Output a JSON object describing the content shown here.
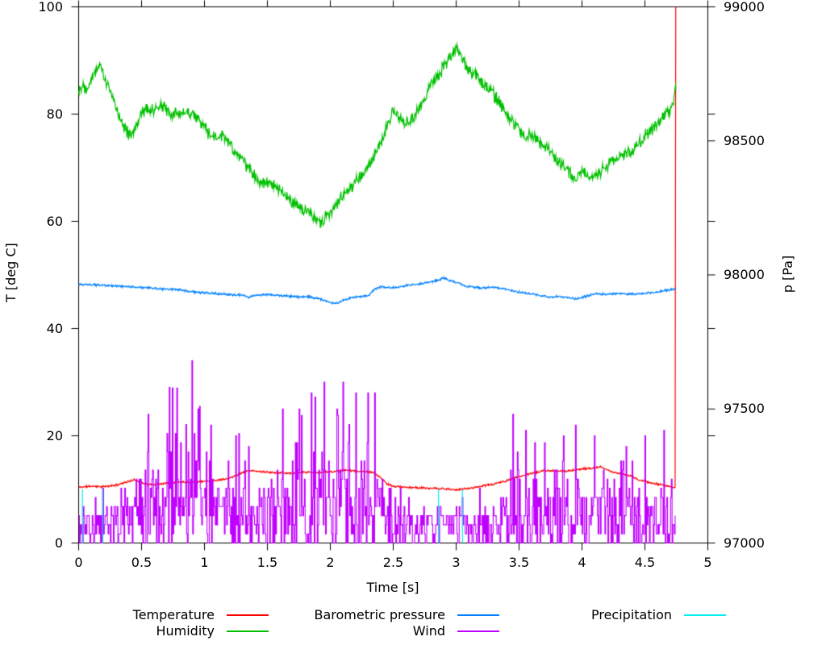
{
  "chart_data": {
    "type": "line",
    "title": "",
    "xlabel": "Time [s]",
    "ylabel": "T [deg C]",
    "y2label": "p [Pa]",
    "xlim": [
      0,
      5
    ],
    "ylim": [
      0,
      100
    ],
    "y2lim": [
      97000,
      99000
    ],
    "grid": false,
    "tick_style": "outward, mirrored on top and right borders",
    "x_tick_values": [
      0,
      0.5,
      1,
      1.5,
      2,
      2.5,
      3,
      3.5,
      4,
      4.5,
      5
    ],
    "x_tick_labels": [
      "0",
      "0.5",
      "1",
      "1.5",
      "2",
      "2.5",
      "3",
      "3.5",
      "4",
      "4.5",
      "5"
    ],
    "y_tick_values": [
      0,
      20,
      40,
      60,
      80,
      100
    ],
    "y_tick_labels": [
      "0",
      "20",
      "40",
      "60",
      "80",
      "100"
    ],
    "y2_tick_values": [
      97000,
      97500,
      98000,
      98500,
      99000
    ],
    "y2_tick_labels": [
      "97000",
      "97500",
      "98000",
      "98500",
      "99000"
    ],
    "data_end_time": 4.745,
    "series": [
      {
        "name": "Temperature",
        "color": "#ff0000",
        "axis": "y1",
        "style": "line",
        "noise": 0.22,
        "seed": 11,
        "points": [
          [
            0,
            10.4
          ],
          [
            0.1,
            10.6
          ],
          [
            0.2,
            10.5
          ],
          [
            0.3,
            10.8
          ],
          [
            0.35,
            11.2
          ],
          [
            0.4,
            11.5
          ],
          [
            0.45,
            11.8
          ],
          [
            0.5,
            11.3
          ],
          [
            0.55,
            10.9
          ],
          [
            0.6,
            10.9
          ],
          [
            0.7,
            11.2
          ],
          [
            0.8,
            11.4
          ],
          [
            0.9,
            11.3
          ],
          [
            1.0,
            11.5
          ],
          [
            1.1,
            11.7
          ],
          [
            1.2,
            12.1
          ],
          [
            1.25,
            12.6
          ],
          [
            1.3,
            13.1
          ],
          [
            1.35,
            13.5
          ],
          [
            1.4,
            13.4
          ],
          [
            1.5,
            13.2
          ],
          [
            1.6,
            13.1
          ],
          [
            1.7,
            13.0
          ],
          [
            1.8,
            13.2
          ],
          [
            1.9,
            13.1
          ],
          [
            2.0,
            13.3
          ],
          [
            2.1,
            13.5
          ],
          [
            2.15,
            13.6
          ],
          [
            2.2,
            13.4
          ],
          [
            2.3,
            13.3
          ],
          [
            2.35,
            13.0
          ],
          [
            2.4,
            12.2
          ],
          [
            2.45,
            11.0
          ],
          [
            2.5,
            10.6
          ],
          [
            2.6,
            10.4
          ],
          [
            2.7,
            10.3
          ],
          [
            2.8,
            10.2
          ],
          [
            2.9,
            10.1
          ],
          [
            3.0,
            9.9
          ],
          [
            3.1,
            10.2
          ],
          [
            3.2,
            10.6
          ],
          [
            3.3,
            11.0
          ],
          [
            3.4,
            11.6
          ],
          [
            3.5,
            12.4
          ],
          [
            3.6,
            13.0
          ],
          [
            3.7,
            13.5
          ],
          [
            3.8,
            13.4
          ],
          [
            3.9,
            13.5
          ],
          [
            4.0,
            13.8
          ],
          [
            4.1,
            14.0
          ],
          [
            4.15,
            14.2
          ],
          [
            4.2,
            13.6
          ],
          [
            4.25,
            13.2
          ],
          [
            4.3,
            13.0
          ],
          [
            4.35,
            12.7
          ],
          [
            4.4,
            12.4
          ],
          [
            4.45,
            11.8
          ],
          [
            4.5,
            11.5
          ],
          [
            4.55,
            11.2
          ],
          [
            4.6,
            11.0
          ],
          [
            4.65,
            10.8
          ],
          [
            4.7,
            10.5
          ],
          [
            4.73,
            10.3
          ],
          [
            4.74,
            10.2
          ],
          [
            4.745,
            100
          ]
        ]
      },
      {
        "name": "Humidity",
        "color": "#00c000",
        "axis": "y1",
        "style": "line",
        "noise": 1.4,
        "seed": 22,
        "points": [
          [
            0,
            84.5
          ],
          [
            0.03,
            85.5
          ],
          [
            0.06,
            85
          ],
          [
            0.1,
            86.5
          ],
          [
            0.13,
            88
          ],
          [
            0.17,
            89.5
          ],
          [
            0.2,
            87
          ],
          [
            0.23,
            85.5
          ],
          [
            0.27,
            83
          ],
          [
            0.3,
            81
          ],
          [
            0.33,
            79.5
          ],
          [
            0.38,
            77
          ],
          [
            0.42,
            75.5
          ],
          [
            0.46,
            78
          ],
          [
            0.5,
            80.5
          ],
          [
            0.55,
            81
          ],
          [
            0.6,
            80.5
          ],
          [
            0.65,
            81.5
          ],
          [
            0.7,
            81
          ],
          [
            0.75,
            79.5
          ],
          [
            0.8,
            80.5
          ],
          [
            0.85,
            80
          ],
          [
            0.9,
            80.5
          ],
          [
            0.95,
            79
          ],
          [
            1.0,
            77.5
          ],
          [
            1.05,
            76
          ],
          [
            1.1,
            75.5
          ],
          [
            1.15,
            76
          ],
          [
            1.2,
            74.5
          ],
          [
            1.25,
            72.5
          ],
          [
            1.3,
            71.5
          ],
          [
            1.35,
            70
          ],
          [
            1.4,
            68.5
          ],
          [
            1.45,
            67.5
          ],
          [
            1.5,
            67
          ],
          [
            1.55,
            66.5
          ],
          [
            1.6,
            65.5
          ],
          [
            1.65,
            64.5
          ],
          [
            1.7,
            63.5
          ],
          [
            1.75,
            63
          ],
          [
            1.8,
            62
          ],
          [
            1.85,
            61
          ],
          [
            1.9,
            60
          ],
          [
            1.93,
            59.5
          ],
          [
            1.97,
            61
          ],
          [
            2.0,
            62
          ],
          [
            2.05,
            63.5
          ],
          [
            2.1,
            65
          ],
          [
            2.15,
            66
          ],
          [
            2.2,
            67.5
          ],
          [
            2.25,
            68.5
          ],
          [
            2.3,
            70
          ],
          [
            2.35,
            72
          ],
          [
            2.4,
            74.5
          ],
          [
            2.45,
            78
          ],
          [
            2.5,
            80.5
          ],
          [
            2.55,
            79.5
          ],
          [
            2.6,
            78
          ],
          [
            2.65,
            79
          ],
          [
            2.7,
            81
          ],
          [
            2.75,
            83
          ],
          [
            2.8,
            85.5
          ],
          [
            2.85,
            87
          ],
          [
            2.9,
            89
          ],
          [
            2.95,
            90.5
          ],
          [
            3.0,
            92.5
          ],
          [
            3.05,
            90
          ],
          [
            3.1,
            88
          ],
          [
            3.15,
            87.5
          ],
          [
            3.2,
            86
          ],
          [
            3.25,
            85
          ],
          [
            3.3,
            83.5
          ],
          [
            3.35,
            82
          ],
          [
            3.4,
            80
          ],
          [
            3.45,
            78.5
          ],
          [
            3.5,
            77
          ],
          [
            3.55,
            75.5
          ],
          [
            3.6,
            76
          ],
          [
            3.65,
            75
          ],
          [
            3.7,
            74
          ],
          [
            3.75,
            73
          ],
          [
            3.8,
            71.5
          ],
          [
            3.85,
            70.5
          ],
          [
            3.9,
            69
          ],
          [
            3.95,
            68
          ],
          [
            4.0,
            69.5
          ],
          [
            4.05,
            68.5
          ],
          [
            4.1,
            68
          ],
          [
            4.15,
            69.5
          ],
          [
            4.2,
            70.5
          ],
          [
            4.25,
            71.5
          ],
          [
            4.3,
            72
          ],
          [
            4.35,
            72.5
          ],
          [
            4.4,
            73.5
          ],
          [
            4.45,
            74.5
          ],
          [
            4.5,
            76
          ],
          [
            4.55,
            77
          ],
          [
            4.6,
            78
          ],
          [
            4.65,
            79.5
          ],
          [
            4.7,
            80.5
          ],
          [
            4.72,
            82
          ],
          [
            4.745,
            84.5
          ]
        ]
      },
      {
        "name": "Barometric pressure",
        "color": "#0080ff",
        "axis": "y2",
        "style": "line",
        "noise": 5,
        "seed": 33,
        "points": [
          [
            0,
            97964
          ],
          [
            0.1,
            97963
          ],
          [
            0.2,
            97961
          ],
          [
            0.3,
            97959
          ],
          [
            0.4,
            97956
          ],
          [
            0.5,
            97953
          ],
          [
            0.6,
            97950
          ],
          [
            0.7,
            97947
          ],
          [
            0.8,
            97944
          ],
          [
            0.9,
            97937
          ],
          [
            1.0,
            97933
          ],
          [
            1.1,
            97930
          ],
          [
            1.2,
            97927
          ],
          [
            1.3,
            97924
          ],
          [
            1.35,
            97917
          ],
          [
            1.4,
            97924
          ],
          [
            1.5,
            97926
          ],
          [
            1.6,
            97924
          ],
          [
            1.7,
            97920
          ],
          [
            1.75,
            97917
          ],
          [
            1.8,
            97920
          ],
          [
            1.9,
            97913
          ],
          [
            1.95,
            97905
          ],
          [
            2.0,
            97897
          ],
          [
            2.05,
            97893
          ],
          [
            2.1,
            97905
          ],
          [
            2.15,
            97912
          ],
          [
            2.2,
            97918
          ],
          [
            2.3,
            97922
          ],
          [
            2.35,
            97946
          ],
          [
            2.4,
            97956
          ],
          [
            2.5,
            97952
          ],
          [
            2.6,
            97960
          ],
          [
            2.7,
            97966
          ],
          [
            2.8,
            97974
          ],
          [
            2.85,
            97980
          ],
          [
            2.9,
            97988
          ],
          [
            2.95,
            97980
          ],
          [
            3.0,
            97972
          ],
          [
            3.1,
            97956
          ],
          [
            3.2,
            97952
          ],
          [
            3.3,
            97954
          ],
          [
            3.4,
            97946
          ],
          [
            3.5,
            97936
          ],
          [
            3.6,
            97930
          ],
          [
            3.7,
            97920
          ],
          [
            3.75,
            97916
          ],
          [
            3.8,
            97920
          ],
          [
            3.9,
            97914
          ],
          [
            3.95,
            97910
          ],
          [
            4.0,
            97916
          ],
          [
            4.1,
            97930
          ],
          [
            4.2,
            97928
          ],
          [
            4.3,
            97930
          ],
          [
            4.4,
            97928
          ],
          [
            4.5,
            97932
          ],
          [
            4.6,
            97936
          ],
          [
            4.7,
            97944
          ],
          [
            4.745,
            97948
          ]
        ]
      },
      {
        "name": "Wind",
        "color": "#c000ff",
        "axis": "y1",
        "style": "steps",
        "quantum": 1.7,
        "seed": 44,
        "envelope": [
          [
            0,
            3.5,
            4
          ],
          [
            0.2,
            4,
            5
          ],
          [
            0.35,
            5,
            8
          ],
          [
            0.5,
            6,
            14
          ],
          [
            0.7,
            7,
            18
          ],
          [
            0.9,
            7,
            22
          ],
          [
            1.0,
            6,
            14
          ],
          [
            1.2,
            6,
            13
          ],
          [
            1.4,
            5,
            11
          ],
          [
            1.6,
            6,
            14
          ],
          [
            1.8,
            7,
            17
          ],
          [
            2.0,
            7,
            19
          ],
          [
            2.2,
            7,
            18
          ],
          [
            2.35,
            6,
            16
          ],
          [
            2.5,
            4,
            7
          ],
          [
            2.7,
            3.5,
            5
          ],
          [
            2.9,
            3.5,
            5
          ],
          [
            3.1,
            3.5,
            6
          ],
          [
            3.3,
            3,
            5
          ],
          [
            3.45,
            6,
            13
          ],
          [
            3.6,
            6,
            11
          ],
          [
            3.8,
            6,
            12
          ],
          [
            4.0,
            6,
            12
          ],
          [
            4.2,
            6,
            10
          ],
          [
            4.4,
            6,
            11
          ],
          [
            4.6,
            5,
            11
          ],
          [
            4.745,
            5,
            9
          ]
        ],
        "spikes": [
          [
            0.55,
            24
          ],
          [
            0.72,
            29
          ],
          [
            0.9,
            34
          ],
          [
            0.95,
            25
          ],
          [
            1.05,
            22
          ],
          [
            1.25,
            20
          ],
          [
            1.35,
            18
          ],
          [
            1.62,
            25
          ],
          [
            1.75,
            25
          ],
          [
            1.85,
            28
          ],
          [
            1.95,
            30
          ],
          [
            2.05,
            25
          ],
          [
            2.1,
            30
          ],
          [
            2.2,
            28
          ],
          [
            2.3,
            28
          ],
          [
            2.35,
            28
          ],
          [
            3.45,
            24
          ],
          [
            3.55,
            21
          ],
          [
            3.85,
            20
          ],
          [
            3.95,
            22
          ],
          [
            4.1,
            20
          ],
          [
            4.35,
            18
          ],
          [
            4.5,
            20
          ],
          [
            4.65,
            21
          ]
        ]
      },
      {
        "name": "Precipitation",
        "color": "#00eeee",
        "axis": "y1",
        "style": "impulses",
        "baseline": 0,
        "spikes": [
          [
            0.03,
            10
          ],
          [
            0.19,
            10
          ],
          [
            2.86,
            10
          ],
          [
            3.05,
            10
          ]
        ]
      }
    ],
    "legend": {
      "position": "below plot, two rows, three columns",
      "entries": [
        {
          "label": "Temperature",
          "color": "#ff0000",
          "column": 1,
          "row": 1
        },
        {
          "label": "Humidity",
          "color": "#00c000",
          "column": 1,
          "row": 2
        },
        {
          "label": "Barometric pressure",
          "color": "#0080ff",
          "column": 2,
          "row": 1
        },
        {
          "label": "Wind",
          "color": "#c000ff",
          "column": 2,
          "row": 2
        },
        {
          "label": "Precipitation",
          "color": "#00eeee",
          "column": 3,
          "row": 1
        }
      ]
    },
    "axis_color": "#000000"
  }
}
